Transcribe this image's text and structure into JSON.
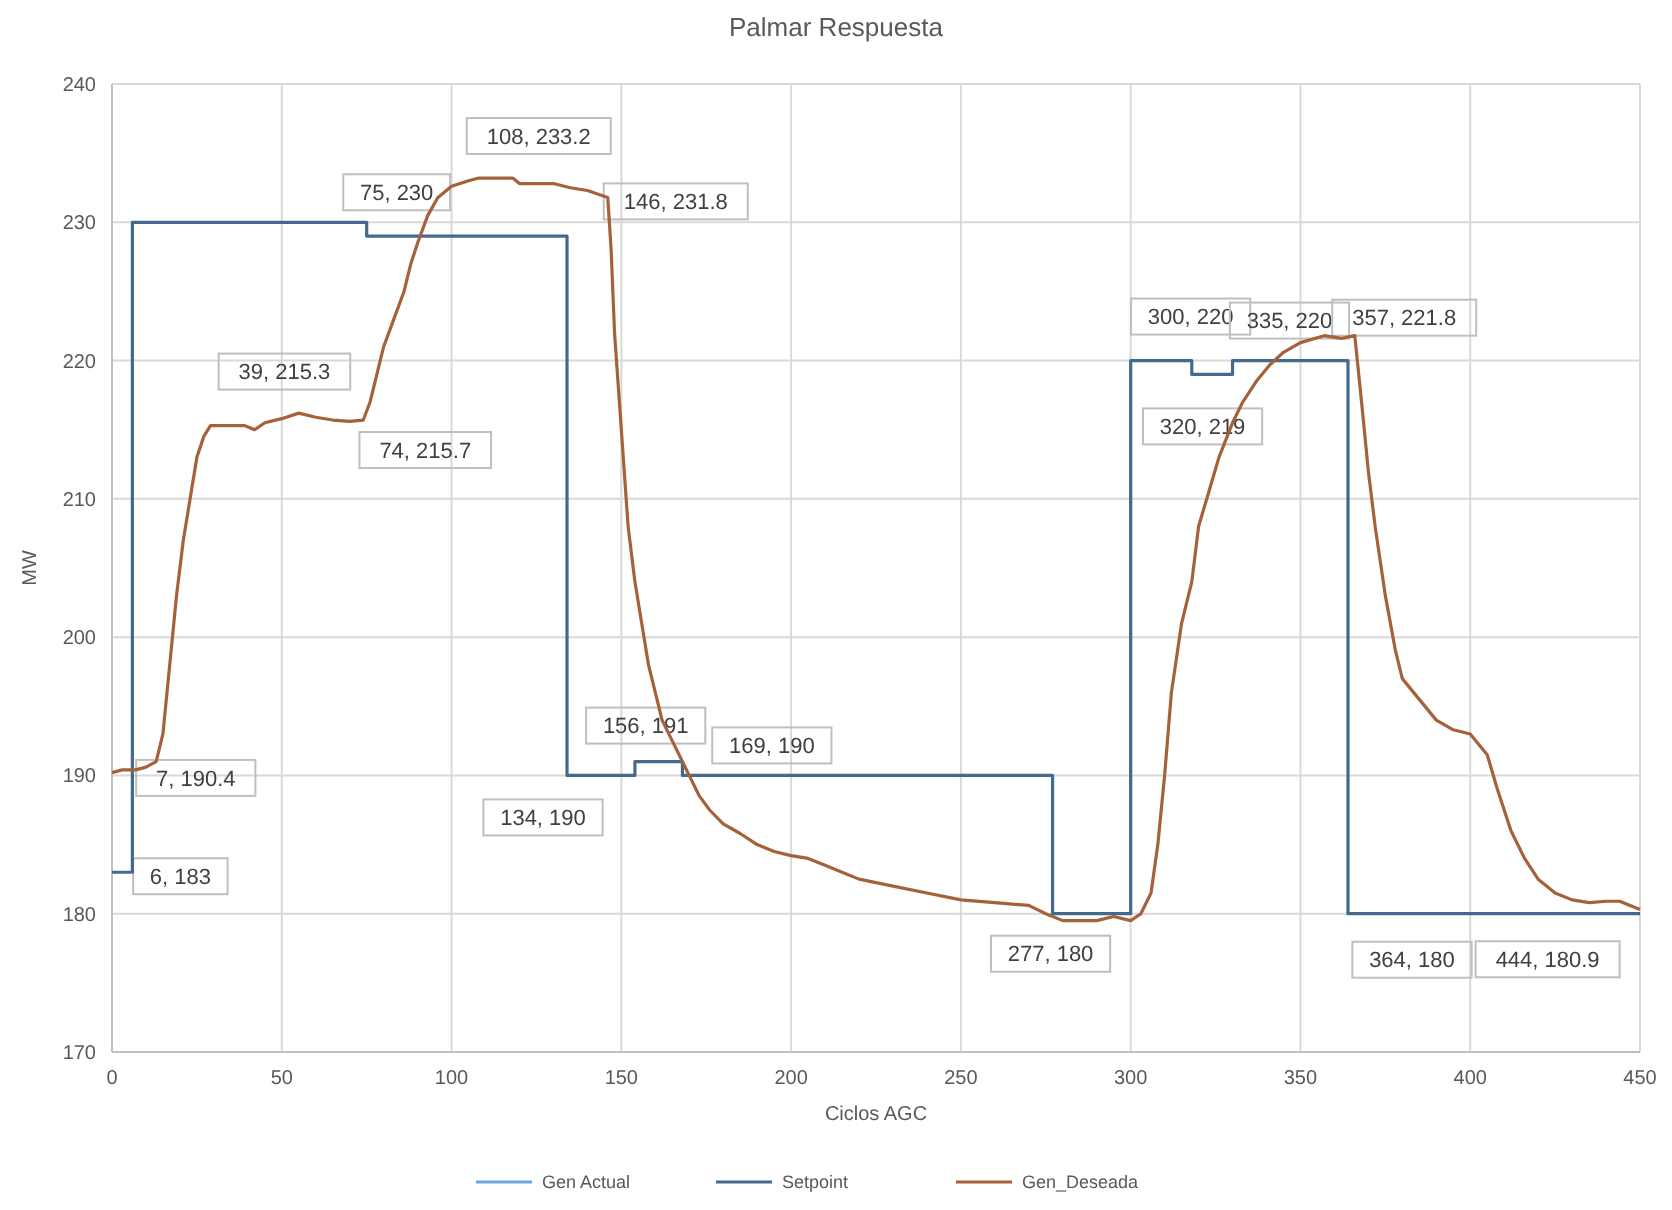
{
  "chart_data": {
    "type": "line",
    "title": "Palmar Respuesta",
    "xlabel": "Ciclos  AGC",
    "ylabel": "MW",
    "xlim": [
      0,
      450
    ],
    "xticks": [
      0,
      50,
      100,
      150,
      200,
      250,
      300,
      350,
      400,
      450
    ],
    "ylim": [
      170,
      240
    ],
    "yticks": [
      170,
      180,
      190,
      200,
      210,
      220,
      230,
      240
    ],
    "grid": true,
    "legend": "bottom",
    "marker": "none",
    "line_style": "solid",
    "series": [
      {
        "name": "Gen Actual",
        "color": "#6fa8dc"
      },
      {
        "name": "Setpoint",
        "type": "step",
        "color": "#44698f",
        "x": [
          0,
          6,
          75,
          134,
          154,
          168,
          277,
          300,
          318,
          330,
          364,
          450
        ],
        "values": [
          183,
          230,
          229,
          190,
          191,
          190,
          180,
          220,
          219,
          220,
          180,
          180
        ]
      },
      {
        "name": "Gen_Deseada",
        "color": "#a5623a",
        "x": [
          0,
          3,
          7,
          10,
          13,
          15,
          17,
          19,
          21,
          23,
          25,
          27,
          29,
          35,
          39,
          42,
          45,
          50,
          55,
          60,
          65,
          70,
          74,
          76,
          78,
          80,
          83,
          86,
          88,
          90,
          93,
          96,
          100,
          105,
          108,
          118,
          120,
          130,
          135,
          140,
          146,
          147,
          148,
          150,
          152,
          154,
          156,
          158,
          160,
          162,
          165,
          170,
          173,
          176,
          180,
          185,
          190,
          195,
          200,
          205,
          210,
          215,
          220,
          230,
          240,
          250,
          260,
          270,
          275,
          280,
          290,
          295,
          300,
          303,
          306,
          308,
          310,
          312,
          315,
          318,
          320,
          323,
          326,
          330,
          333,
          337,
          341,
          345,
          350,
          357,
          362,
          366,
          368,
          370,
          372,
          375,
          378,
          380,
          385,
          390,
          395,
          400,
          405,
          408,
          412,
          416,
          420,
          425,
          430,
          435,
          440,
          444,
          450
        ],
        "values": [
          190.2,
          190.4,
          190.4,
          190.6,
          191,
          193,
          198,
          203,
          207,
          210,
          213,
          214.5,
          215.3,
          215.3,
          215.3,
          215,
          215.5,
          215.8,
          216.2,
          215.9,
          215.7,
          215.6,
          215.7,
          217,
          219,
          221,
          223,
          225,
          227,
          228.5,
          230.5,
          231.8,
          232.6,
          233,
          233.2,
          233.2,
          232.8,
          232.8,
          232.5,
          232.3,
          231.8,
          228,
          222,
          215,
          208,
          204,
          201,
          198,
          196,
          194,
          192.5,
          190,
          188.5,
          187.5,
          186.5,
          185.8,
          185,
          184.5,
          184.2,
          184,
          183.5,
          183,
          182.5,
          182,
          181.5,
          181,
          180.8,
          180.6,
          180,
          179.5,
          179.5,
          179.8,
          179.5,
          180,
          181.5,
          185,
          190,
          196,
          201,
          204,
          208,
          210.5,
          213,
          215.5,
          217,
          218.5,
          219.7,
          220.6,
          221.3,
          221.8,
          221.6,
          221.8,
          217,
          212,
          208,
          203,
          199,
          197,
          195.5,
          194,
          193.3,
          193,
          191.5,
          189,
          186,
          184,
          182.5,
          181.5,
          181,
          180.8,
          180.9,
          180.9,
          180.3
        ]
      }
    ],
    "annotations": [
      {
        "text": "6, 183",
        "x": 6,
        "y": 183
      },
      {
        "text": "7, 190.4",
        "x": 7,
        "y": 190.4
      },
      {
        "text": "39, 215.3",
        "x": 39,
        "y": 215.3
      },
      {
        "text": "74, 215.7",
        "x": 74,
        "y": 215.7
      },
      {
        "text": "75, 230",
        "x": 75,
        "y": 230
      },
      {
        "text": "108, 233.2",
        "x": 108,
        "y": 233.2
      },
      {
        "text": "146, 231.8",
        "x": 146,
        "y": 231.8
      },
      {
        "text": "134, 190",
        "x": 134,
        "y": 190
      },
      {
        "text": "156, 191",
        "x": 156,
        "y": 191
      },
      {
        "text": "169, 190",
        "x": 169,
        "y": 190
      },
      {
        "text": "277, 180",
        "x": 277,
        "y": 180
      },
      {
        "text": "300, 220",
        "x": 300,
        "y": 220
      },
      {
        "text": "320, 219",
        "x": 320,
        "y": 219
      },
      {
        "text": "335, 220",
        "x": 335,
        "y": 220
      },
      {
        "text": "357, 221.8",
        "x": 357,
        "y": 221.8
      },
      {
        "text": "364, 180",
        "x": 364,
        "y": 180
      },
      {
        "text": "444, 180.9",
        "x": 444,
        "y": 180.9
      }
    ]
  }
}
